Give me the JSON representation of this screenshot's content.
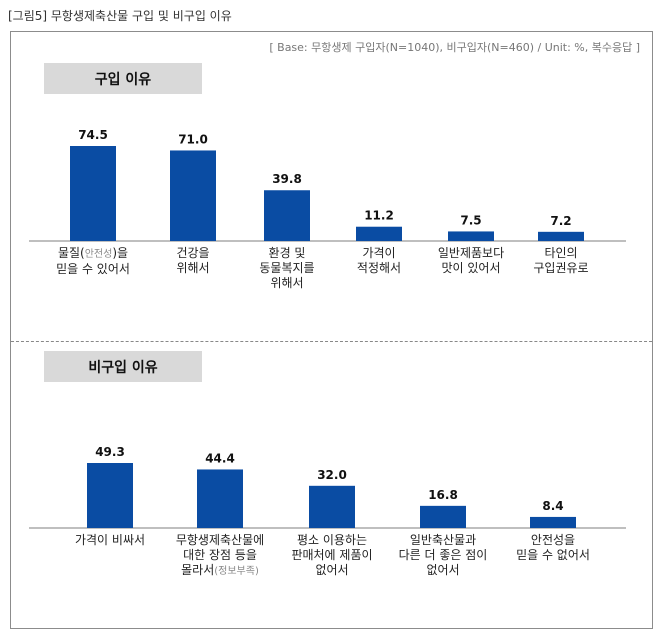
{
  "figure_title": "[그림5] 무항생제축산물 구입 및 비구입 이유",
  "base_note": "[ Base: 무항생제 구입자(N=1040), 비구입자(N=460) / Unit: %, 복수응답 ]",
  "colors": {
    "bar": "#0a4ca3",
    "axis": "#7f7f7f",
    "label_bg": "#d9d9d9"
  },
  "chart_data": [
    {
      "type": "bar",
      "title": "구입 이유",
      "categories": [
        "물질(안전성)을\n믿을 수 있어서",
        "건강을\n위해서",
        "환경 및\n동물복지를\n위해서",
        "가격이\n적정해서",
        "일반제품보다\n맛이 있어서",
        "타인의\n구입권유로"
      ],
      "category_hints": [
        "안전성",
        "",
        "",
        "",
        "",
        ""
      ],
      "values": [
        74.5,
        71.0,
        39.8,
        11.2,
        7.5,
        7.2
      ],
      "value_labels": [
        "74.5",
        "71.0",
        "39.8",
        "11.2",
        "7.5",
        "7.2"
      ],
      "ylim": [
        0,
        80
      ],
      "grid": false,
      "xlabel": "",
      "ylabel": ""
    },
    {
      "type": "bar",
      "title": "비구입 이유",
      "categories": [
        "가격이 비싸서",
        "무항생제축산물에\n대한 장점 등을\n몰라서",
        "평소 이용하는\n판매처에 제품이\n없어서",
        "일반축산물과\n다른 더 좋은 점이\n없어서",
        "안전성을\n믿을 수 없어서"
      ],
      "category_hints": [
        "",
        "(정보부족)",
        "",
        "",
        ""
      ],
      "values": [
        49.3,
        44.4,
        32.0,
        16.8,
        8.4
      ],
      "value_labels": [
        "49.3",
        "44.4",
        "32.0",
        "16.8",
        "8.4"
      ],
      "ylim": [
        0,
        56
      ],
      "grid": false,
      "xlabel": "",
      "ylabel": ""
    }
  ]
}
